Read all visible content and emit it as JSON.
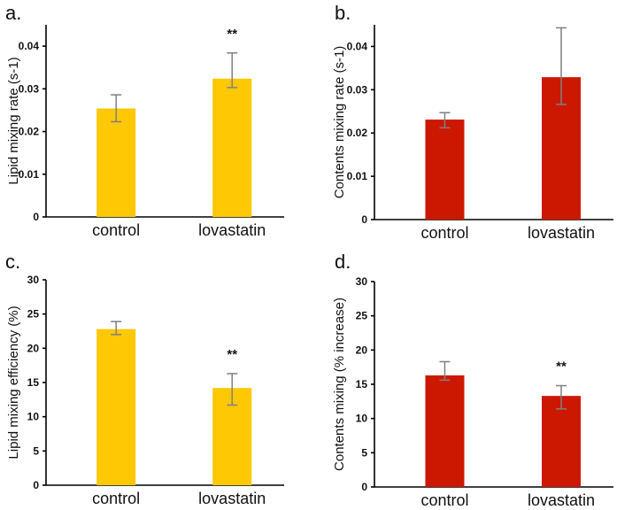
{
  "colors": {
    "yellow": "#FFC805",
    "red": "#CC1800",
    "error_bar": "#7f7f7f",
    "axis": "#000000"
  },
  "chart_data": [
    {
      "type": "bar",
      "panel_label": "a.",
      "categories": [
        "control",
        "lovastatin"
      ],
      "values": [
        0.0254,
        0.0324
      ],
      "error_low": [
        0.0223,
        0.0303
      ],
      "error_high": [
        0.0286,
        0.0384
      ],
      "significance": [
        "",
        "**"
      ],
      "ylabel": "Lipid mixing rate (s-1)",
      "xlabel": "",
      "ylim": [
        0,
        0.045
      ],
      "yticks": [
        0,
        0.01,
        0.02,
        0.03,
        0.04
      ],
      "ytick_labels": [
        "0",
        "0.01",
        "0.02",
        "0.03",
        "0.04"
      ],
      "color": "yellow",
      "grid": false
    },
    {
      "type": "bar",
      "panel_label": "b.",
      "categories": [
        "control",
        "lovastatin"
      ],
      "values": [
        0.0231,
        0.0329
      ],
      "error_low": [
        0.0212,
        0.0266
      ],
      "error_high": [
        0.0247,
        0.0443
      ],
      "significance": [
        "",
        ""
      ],
      "ylabel": "Contents mixing rate (s-1)",
      "xlabel": "",
      "ylim": [
        0,
        0.045
      ],
      "yticks": [
        0,
        0.01,
        0.02,
        0.03,
        0.04
      ],
      "ytick_labels": [
        "0",
        "0.01",
        "0.02",
        "0.03",
        "0.04"
      ],
      "color": "red",
      "grid": false
    },
    {
      "type": "bar",
      "panel_label": "c.",
      "categories": [
        "control",
        "lovastatin"
      ],
      "values": [
        22.8,
        14.2
      ],
      "error_low": [
        22.0,
        11.7
      ],
      "error_high": [
        23.9,
        16.3
      ],
      "significance": [
        "",
        "**"
      ],
      "ylabel": "Lipid mixing efficiency (%)",
      "xlabel": "",
      "ylim": [
        0,
        30
      ],
      "yticks": [
        0,
        5,
        10,
        15,
        20,
        25,
        30
      ],
      "ytick_labels": [
        "0",
        "5",
        "10",
        "15",
        "20",
        "25",
        "30"
      ],
      "color": "yellow",
      "grid": false
    },
    {
      "type": "bar",
      "panel_label": "d.",
      "categories": [
        "control",
        "lovastatin"
      ],
      "values": [
        16.3,
        13.3
      ],
      "error_low": [
        15.6,
        11.4
      ],
      "error_high": [
        18.3,
        14.8
      ],
      "significance": [
        "",
        "**"
      ],
      "ylabel": "Contents mixing (% increase)",
      "xlabel": "",
      "ylim": [
        0,
        30
      ],
      "yticks": [
        0,
        5,
        10,
        15,
        20,
        25,
        30
      ],
      "ytick_labels": [
        "0",
        "5",
        "10",
        "15",
        "20",
        "25",
        "30"
      ],
      "color": "red",
      "grid": false
    }
  ]
}
